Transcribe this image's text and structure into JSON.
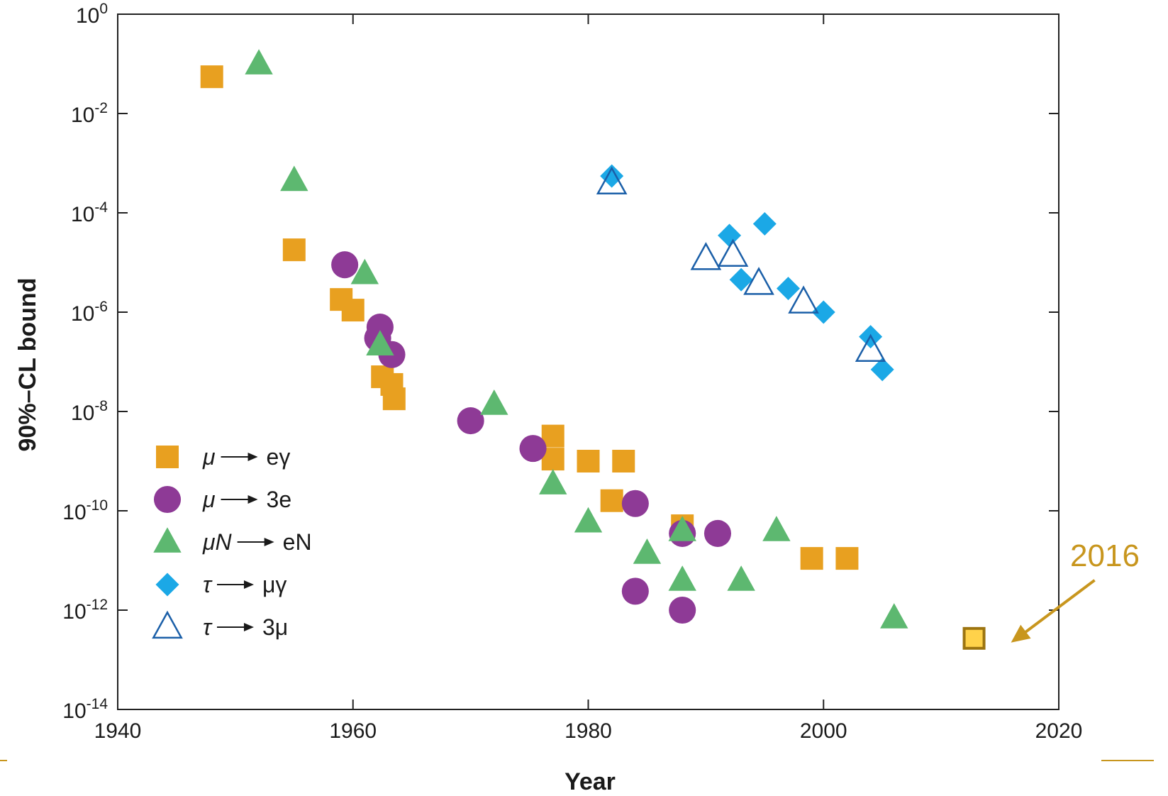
{
  "chart_data": {
    "type": "scatter",
    "title": "",
    "xlabel": "Year",
    "ylabel": "90%–CL bound",
    "xlim": [
      1940,
      2020
    ],
    "ylim": [
      1e-14,
      1
    ],
    "yscale": "log",
    "grid": false,
    "legend": {
      "placement": "bottom-left"
    },
    "x_ticks": [
      "1940",
      "1960",
      "1980",
      "2000",
      "2020"
    ],
    "y_ticks": [
      {
        "base": "10",
        "exp": "0",
        "value": 1
      },
      {
        "base": "10",
        "exp": "-2",
        "value": 0.01
      },
      {
        "base": "10",
        "exp": "-4",
        "value": 0.0001
      },
      {
        "base": "10",
        "exp": "-6",
        "value": 1e-06
      },
      {
        "base": "10",
        "exp": "-8",
        "value": 1e-08
      },
      {
        "base": "10",
        "exp": "-10",
        "value": 1e-10
      },
      {
        "base": "10",
        "exp": "-12",
        "value": 1e-12
      },
      {
        "base": "10",
        "exp": "-14",
        "value": 1e-14
      }
    ],
    "series": [
      {
        "name": "μ → eγ",
        "legend_parts": [
          "μ",
          "eγ"
        ],
        "marker": "square",
        "color": "#E8A020",
        "points": [
          {
            "x": 1948,
            "y": 0.055
          },
          {
            "x": 1955,
            "y": 1.8e-05
          },
          {
            "x": 1959,
            "y": 1.8e-06
          },
          {
            "x": 1960,
            "y": 1.1e-06
          },
          {
            "x": 1962.5,
            "y": 5e-08
          },
          {
            "x": 1963.3,
            "y": 3.5e-08
          },
          {
            "x": 1963.5,
            "y": 1.8e-08
          },
          {
            "x": 1977,
            "y": 3.2e-09
          },
          {
            "x": 1977,
            "y": 1.1e-09
          },
          {
            "x": 1980,
            "y": 1e-09
          },
          {
            "x": 1983,
            "y": 1e-09
          },
          {
            "x": 1982,
            "y": 1.6e-10
          },
          {
            "x": 1988,
            "y": 5e-11
          },
          {
            "x": 1999,
            "y": 1.1e-11
          },
          {
            "x": 2002,
            "y": 1.1e-11
          }
        ]
      },
      {
        "name": "μ → 3e",
        "legend_parts": [
          "μ",
          "3e"
        ],
        "marker": "circle",
        "color": "#8E3A96",
        "points": [
          {
            "x": 1959.3,
            "y": 9e-06
          },
          {
            "x": 1962.3,
            "y": 5e-07
          },
          {
            "x": 1962.1,
            "y": 3e-07
          },
          {
            "x": 1963.3,
            "y": 1.4e-07
          },
          {
            "x": 1970,
            "y": 6.5e-09
          },
          {
            "x": 1975.3,
            "y": 1.8e-09
          },
          {
            "x": 1984,
            "y": 1.4e-10
          },
          {
            "x": 1988,
            "y": 3.5e-11
          },
          {
            "x": 1991,
            "y": 3.5e-11
          },
          {
            "x": 1984,
            "y": 2.4e-12
          },
          {
            "x": 1988,
            "y": 1e-12
          }
        ]
      },
      {
        "name": "μN → eN",
        "legend_parts": [
          "μN",
          "eN"
        ],
        "marker": "triangle",
        "color": "#5DB870",
        "points": [
          {
            "x": 1952,
            "y": 0.1
          },
          {
            "x": 1955,
            "y": 0.00045
          },
          {
            "x": 1961,
            "y": 6e-06
          },
          {
            "x": 1962.3,
            "y": 2.2e-07
          },
          {
            "x": 1972,
            "y": 1.4e-08
          },
          {
            "x": 1977,
            "y": 3.5e-10
          },
          {
            "x": 1980,
            "y": 6e-11
          },
          {
            "x": 1985,
            "y": 1.4e-11
          },
          {
            "x": 1988,
            "y": 4e-11
          },
          {
            "x": 1988,
            "y": 4e-12
          },
          {
            "x": 1993,
            "y": 4e-12
          },
          {
            "x": 1996,
            "y": 4e-11
          },
          {
            "x": 2006,
            "y": 7e-13
          }
        ]
      },
      {
        "name": "τ → μγ",
        "legend_parts": [
          "τ",
          "μγ"
        ],
        "marker": "diamond",
        "color": "#1BA8E6",
        "points": [
          {
            "x": 1982,
            "y": 0.00055
          },
          {
            "x": 1992,
            "y": 3.5e-05
          },
          {
            "x": 1995,
            "y": 6e-05
          },
          {
            "x": 1993,
            "y": 4.5e-06
          },
          {
            "x": 1997,
            "y": 3e-06
          },
          {
            "x": 2000,
            "y": 1e-06
          },
          {
            "x": 2004,
            "y": 3.2e-07
          },
          {
            "x": 2005,
            "y": 7e-08
          }
        ]
      },
      {
        "name": "τ → 3μ",
        "legend_parts": [
          "τ",
          "3μ"
        ],
        "marker": "triangle-open",
        "color": "#1B5FA8",
        "points": [
          {
            "x": 1982,
            "y": 0.0004
          },
          {
            "x": 1990,
            "y": 1.2e-05
          },
          {
            "x": 1992.3,
            "y": 1.4e-05
          },
          {
            "x": 1994.5,
            "y": 3.8e-06
          },
          {
            "x": 1998.3,
            "y": 1.6e-06
          },
          {
            "x": 2004,
            "y": 1.7e-07
          }
        ]
      }
    ],
    "annotation": {
      "label": "2016",
      "point": {
        "x": 2012.8,
        "y": 2.7e-13
      },
      "color": "#C8961E",
      "marker_fill": "#FFD24A",
      "marker_stroke": "#9C7410"
    }
  }
}
